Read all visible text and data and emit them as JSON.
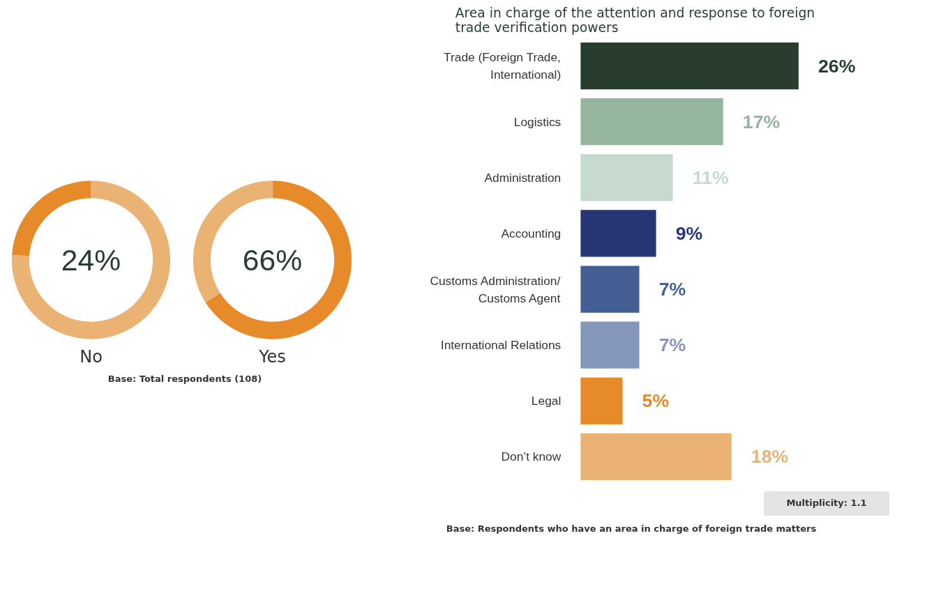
{
  "chart_data": [
    {
      "type": "donut",
      "title": "No",
      "categories": [
        null,
        null
      ],
      "values": [
        76,
        24
      ],
      "colors": [
        "#eab373",
        "#e68a2a"
      ],
      "annotations": [
        "24%",
        "Base: Total respondents (108)"
      ]
    },
    {
      "type": "donut",
      "title": "Yes",
      "categories": [
        null,
        null
      ],
      "values": [
        66,
        34
      ],
      "colors": [
        "#e68a2a",
        "#eab373"
      ],
      "annotations": [
        "66%"
      ]
    },
    {
      "type": "bar",
      "orientation": "horizontal",
      "title": "Area in charge of the attention and response to foreign trade verification powers",
      "categories": [
        "Trade (Foreign Trade, International)",
        "Logistics",
        "Administration",
        "Accounting",
        "Customs Administration/ Customs Agent",
        "International Relations",
        "Legal",
        "Don’t know"
      ],
      "values": [
        26,
        17,
        11,
        9,
        7,
        7,
        5,
        18
      ],
      "colors": [
        "#283d2e",
        "#95b59c",
        "#c7dad0",
        "#263675",
        "#445f94",
        "#8496ba",
        "#e68a2a",
        "#eab373"
      ],
      "value_labels": [
        "26%",
        "17%",
        "11%",
        "9%",
        "7%",
        "7%",
        "5%",
        "18%"
      ],
      "annotations": [
        "Multiplicity: 1.1",
        "Base: Respondents who have an area in charge of foreign trade matters"
      ]
    }
  ]
}
